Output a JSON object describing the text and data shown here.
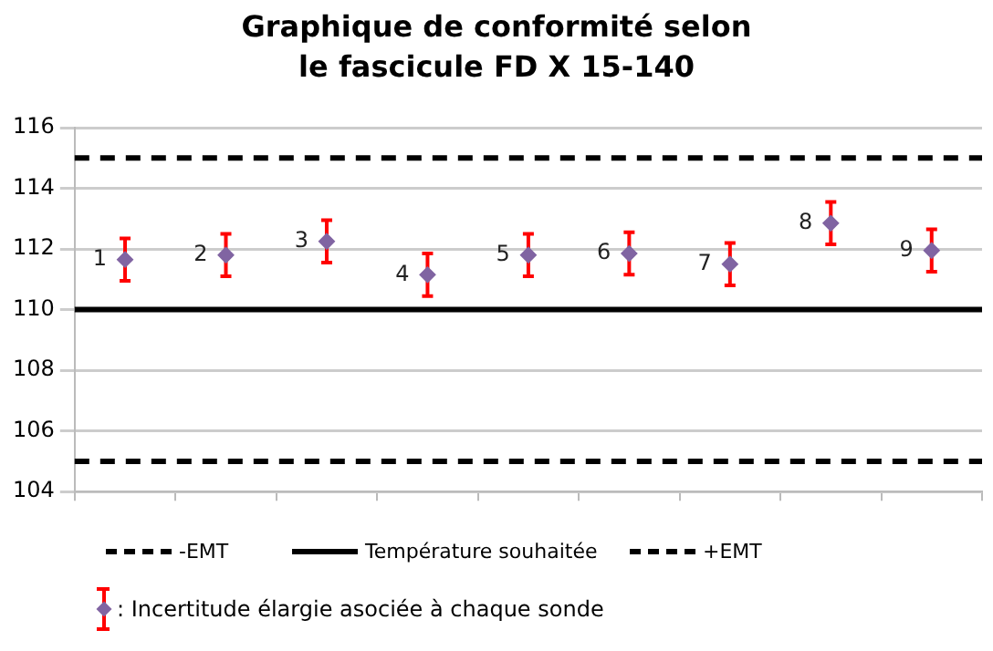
{
  "chart_data": {
    "type": "scatter",
    "title": "Graphique de conformité selon le fascicule FD X 15-140",
    "categories": [
      null,
      null,
      null,
      null,
      null,
      null,
      null,
      null,
      null
    ],
    "series": [
      {
        "name": ": Incertitude élargie asociée à chaque sonde",
        "color": "#8064a2",
        "values": [
          111.65,
          111.8,
          112.25,
          111.15,
          111.8,
          111.85,
          111.5,
          112.85,
          111.95
        ],
        "errors": [
          0.7,
          0.7,
          0.7,
          0.7,
          0.7,
          0.7,
          0.7,
          0.7,
          0.7
        ]
      }
    ],
    "annotations": [
      "1",
      "2",
      "3",
      "4",
      "5",
      "6",
      "7",
      "8",
      "9"
    ],
    "ref_lines": [
      {
        "axis": "y",
        "value": 105,
        "label": "-EMT",
        "color": "#000000",
        "line_style": "dashed"
      },
      {
        "axis": "y",
        "value": 110,
        "label": "Température souhaitée",
        "color": "#000000",
        "line_style": "solid"
      },
      {
        "axis": "y",
        "value": 115,
        "label": "+EMT",
        "color": "#000000",
        "line_style": "dashed"
      }
    ],
    "ylim": [
      104,
      116
    ],
    "yticks": [
      104,
      106,
      108,
      110,
      112,
      114,
      116
    ],
    "grid": "y",
    "legend": "bottom",
    "marker": "diamond"
  }
}
